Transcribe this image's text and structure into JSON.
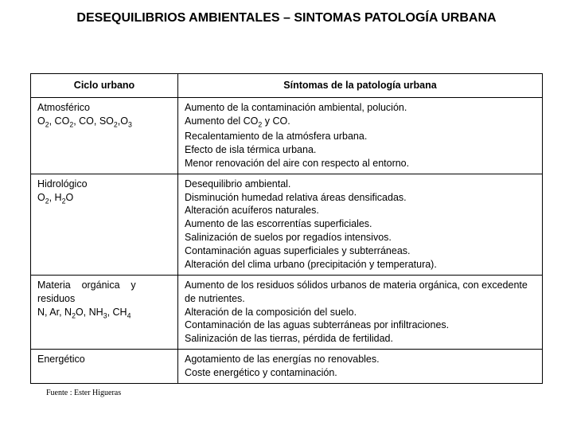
{
  "title": "DESEQUILIBRIOS AMBIENTALES – SINTOMAS PATOLOGÍA URBANA",
  "headers": {
    "col1": "Ciclo urbano",
    "col2": "Síntomas de la patología urbana"
  },
  "rows": [
    {
      "c1_html": "Atmosférico<br>O<sub>2</sub>, CO<sub>2</sub>, CO, SO<sub>2</sub>,O<sub>3</sub>",
      "c2_html": "Aumento de la contaminación ambiental, polución.<br>Aumento del CO<sub>2</sub> y CO.<br>Recalentamiento de la atmósfera urbana.<br>Efecto de isla térmica urbana.<br>Menor renovación del aire con respecto al entorno."
    },
    {
      "c1_html": "Hidrológico<br>O<sub>2</sub>, H<sub>2</sub>O",
      "c2_html": "Desequilibrio ambiental.<br>Disminución humedad relativa áreas densificadas.<br>Alteración acuíferos naturales.<br>Aumento de las escorrentías superficiales.<br>Salinización de suelos por regadíos intensivos.<br>Contaminación aguas superficiales y subterráneas.<br>Alteración del clima urbano (precipitación y temperatura)."
    },
    {
      "c1_html": "Materia &nbsp;&nbsp; orgánica &nbsp;&nbsp; y residuos<br>N, Ar, N<sub>2</sub>O, NH<sub>3</sub>, CH<sub>4</sub>",
      "c2_html": "Aumento de los residuos sólidos urbanos de materia orgánica, con excedente de nutrientes.<br>Alteración de la composición del suelo.<br>Contaminación de las aguas subterráneas por infiltraciones.<br>Salinización de las tierras, pérdida de fertilidad."
    },
    {
      "c1_html": "Energético",
      "c2_html": "Agotamiento de las energías no renovables.<br>Coste energético y contaminación."
    }
  ],
  "source": "Fuente : Ester Higueras"
}
